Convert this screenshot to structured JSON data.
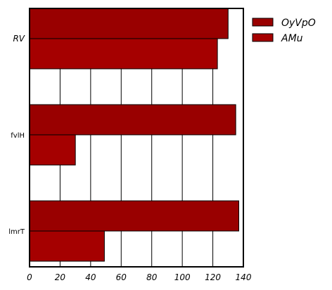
{
  "chart_data": {
    "type": "bar",
    "orientation": "horizontal",
    "categories": [
      "RV",
      "fvlH",
      "lmrT"
    ],
    "series": [
      {
        "name": "OyVpO",
        "values": [
          130,
          135,
          137
        ],
        "color": "#990000"
      },
      {
        "name": "AMu",
        "values": [
          123,
          30,
          49
        ],
        "color": "#a50000"
      }
    ],
    "xlim": [
      0,
      140
    ],
    "xticks": [
      "0",
      "20",
      "40",
      "60",
      "80",
      "100",
      "120",
      "140"
    ],
    "title": "",
    "xlabel": "",
    "ylabel": "",
    "grid": "vertical",
    "legend": "top-right"
  }
}
